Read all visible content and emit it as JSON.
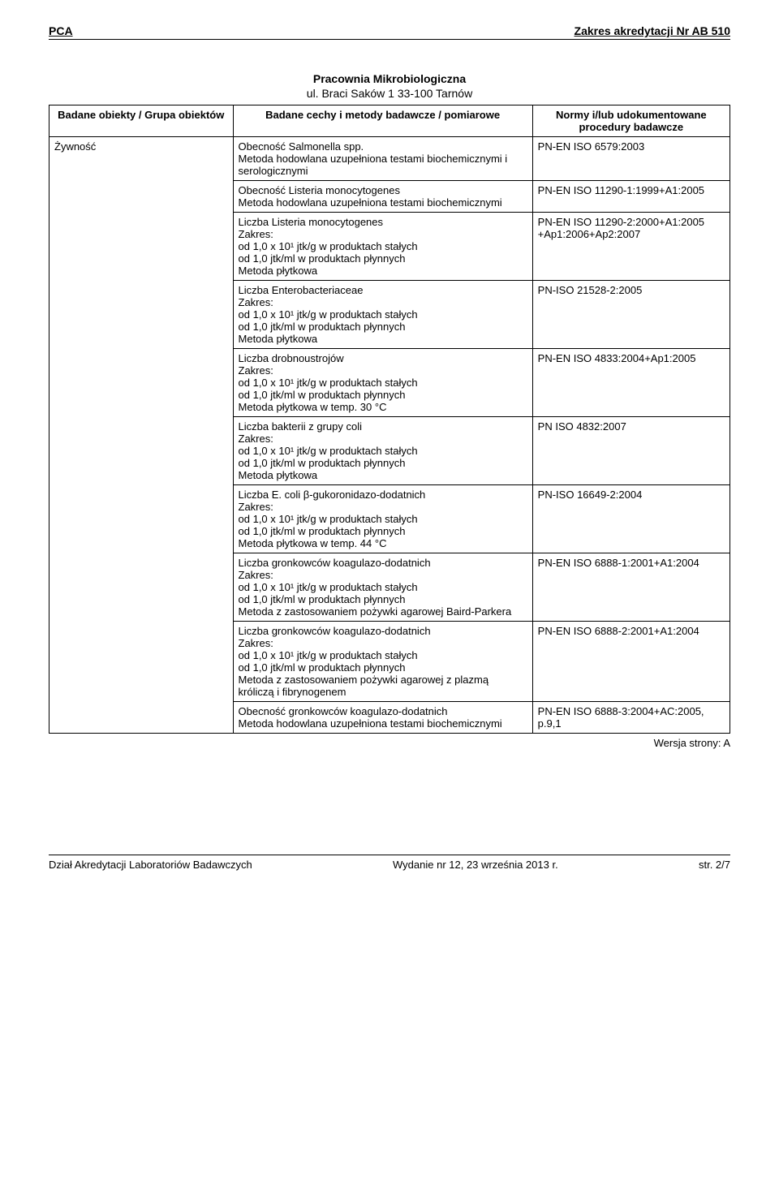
{
  "header": {
    "left": "PCA",
    "right": "Zakres akredytacji Nr AB 510"
  },
  "lab": {
    "title": "Pracownia Mikrobiologiczna",
    "address": "ul. Braci Saków 1 33-100 Tarnów"
  },
  "table": {
    "headers": {
      "col1": "Badane obiekty / Grupa obiektów",
      "col2": "Badane cechy i metody badawcze / pomiarowe",
      "col3": "Normy i/lub udokumentowane procedury badawcze"
    },
    "object": "Żywność",
    "rows": [
      {
        "method": "Obecność Salmonella spp.\nMetoda hodowlana uzupełniona testami biochemicznymi i serologicznymi",
        "norm": "PN-EN ISO 6579:2003"
      },
      {
        "method": "Obecność Listeria monocytogenes\nMetoda hodowlana uzupełniona testami biochemicznymi",
        "norm": "PN-EN ISO 11290-1:1999+A1:2005"
      },
      {
        "method": "Liczba Listeria monocytogenes\nZakres:\nod 1,0 x 10¹ jtk/g w produktach stałych\nod 1,0 jtk/ml w produktach płynnych\nMetoda płytkowa",
        "norm": "PN-EN ISO 11290-2:2000+A1:2005 +Ap1:2006+Ap2:2007"
      },
      {
        "method": "Liczba Enterobacteriaceae\nZakres:\nod 1,0 x 10¹ jtk/g w produktach stałych\nod 1,0 jtk/ml w produktach płynnych\nMetoda płytkowa",
        "norm": "PN-ISO 21528-2:2005"
      },
      {
        "method": "Liczba drobnoustrojów\nZakres:\nod 1,0 x 10¹ jtk/g w produktach stałych\nod 1,0 jtk/ml w produktach płynnych\nMetoda płytkowa w temp. 30 °C",
        "norm": "PN-EN ISO 4833:2004+Ap1:2005"
      },
      {
        "method": "Liczba bakterii z grupy coli\nZakres:\nod 1,0 x 10¹ jtk/g w produktach stałych\nod 1,0 jtk/ml w produktach płynnych\nMetoda płytkowa",
        "norm": "PN ISO 4832:2007"
      },
      {
        "method": "Liczba E. coli β-gukoronidazo-dodatnich\nZakres:\nod 1,0 x 10¹ jtk/g w produktach stałych\nod 1,0 jtk/ml w produktach płynnych\nMetoda płytkowa w temp. 44 °C",
        "norm": "PN-ISO 16649-2:2004"
      },
      {
        "method": "Liczba gronkowców koagulazo-dodatnich\nZakres:\nod 1,0 x 10¹ jtk/g w produktach stałych\nod 1,0 jtk/ml w produktach płynnych\nMetoda z zastosowaniem pożywki agarowej Baird-Parkera",
        "norm": "PN-EN ISO 6888-1:2001+A1:2004"
      },
      {
        "method": "Liczba gronkowców koagulazo-dodatnich\nZakres:\nod 1,0 x 10¹ jtk/g w produktach stałych\nod 1,0 jtk/ml w produktach płynnych\nMetoda z zastosowaniem pożywki agarowej z plazmą króliczą i fibrynogenem",
        "norm": "PN-EN ISO 6888-2:2001+A1:2004"
      },
      {
        "method": "Obecność gronkowców koagulazo-dodatnich\nMetoda hodowlana uzupełniona testami biochemicznymi",
        "norm": "PN-EN ISO 6888-3:2004+AC:2005, p.9,1"
      }
    ]
  },
  "version": "Wersja strony: A",
  "footer": {
    "left": "Dział Akredytacji Laboratoriów Badawczych",
    "center": "Wydanie nr 12, 23 września 2013 r.",
    "right": "str. 2/7"
  }
}
